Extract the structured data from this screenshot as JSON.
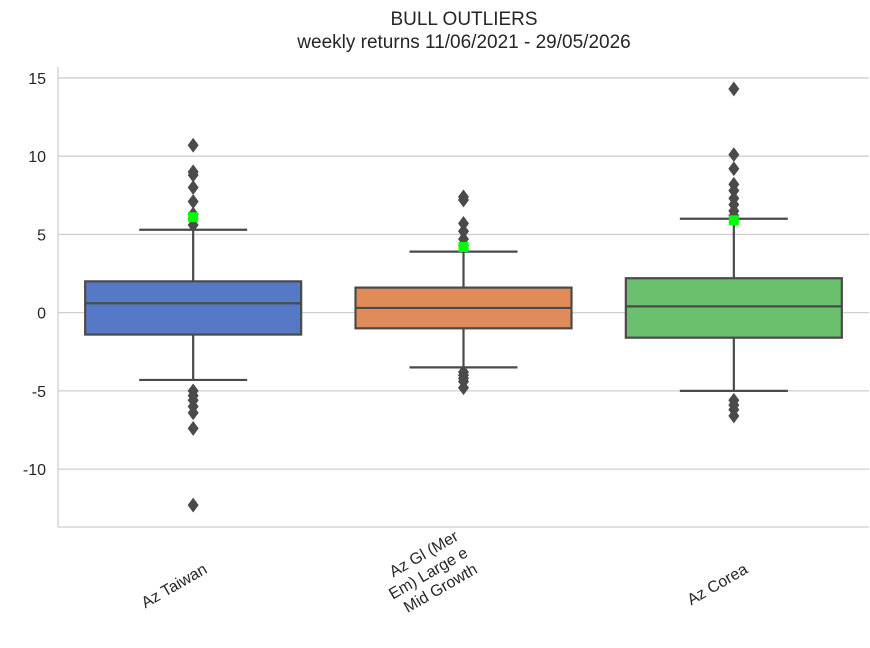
{
  "chart_data": {
    "type": "box",
    "title": "BULL OUTLIERS",
    "subtitle": "weekly returns 11/06/2021 - 29/05/2026",
    "xlabel": "",
    "ylabel": "",
    "ylim": [
      -13.7,
      15.7
    ],
    "yticks": [
      15,
      10,
      5,
      0,
      -5,
      -10
    ],
    "ytick_labels": [
      "15",
      "10",
      "5",
      "0",
      "-5",
      "-10"
    ],
    "grid": "horizontal",
    "categories": [
      [
        "Az Taiwan"
      ],
      [
        "Az Gl (Mer",
        "Em) Large e",
        "Mid Growth"
      ],
      [
        "Az Corea"
      ]
    ],
    "boxes": [
      {
        "color": "#5579c6",
        "q1": -1.4,
        "median": 0.6,
        "q3": 2.0,
        "whisker_low": -4.3,
        "whisker_high": 5.3,
        "outliers": [
          10.7,
          9.0,
          8.8,
          8.0,
          7.1,
          6.3,
          6.0,
          5.6,
          -5.0,
          -5.3,
          -5.6,
          -6.0,
          -6.4,
          -7.4,
          -12.3
        ],
        "highlight": 6.1
      },
      {
        "color": "#e08b5a",
        "q1": -1.0,
        "median": 0.3,
        "q3": 1.6,
        "whisker_low": -3.5,
        "whisker_high": 3.9,
        "outliers": [
          7.4,
          7.2,
          5.7,
          5.2,
          4.7,
          4.3,
          -3.8,
          -4.0,
          -4.2,
          -4.4,
          -4.8
        ],
        "highlight": 4.2
      },
      {
        "color": "#6ac06d",
        "q1": -1.6,
        "median": 0.4,
        "q3": 2.2,
        "whisker_low": -5.0,
        "whisker_high": 6.0,
        "outliers": [
          14.3,
          10.1,
          9.2,
          8.2,
          7.8,
          7.3,
          6.9,
          6.5,
          6.2,
          -5.6,
          -5.9,
          -6.2,
          -6.6
        ],
        "highlight": 5.9
      }
    ],
    "highlight_color": "#00ff00"
  }
}
